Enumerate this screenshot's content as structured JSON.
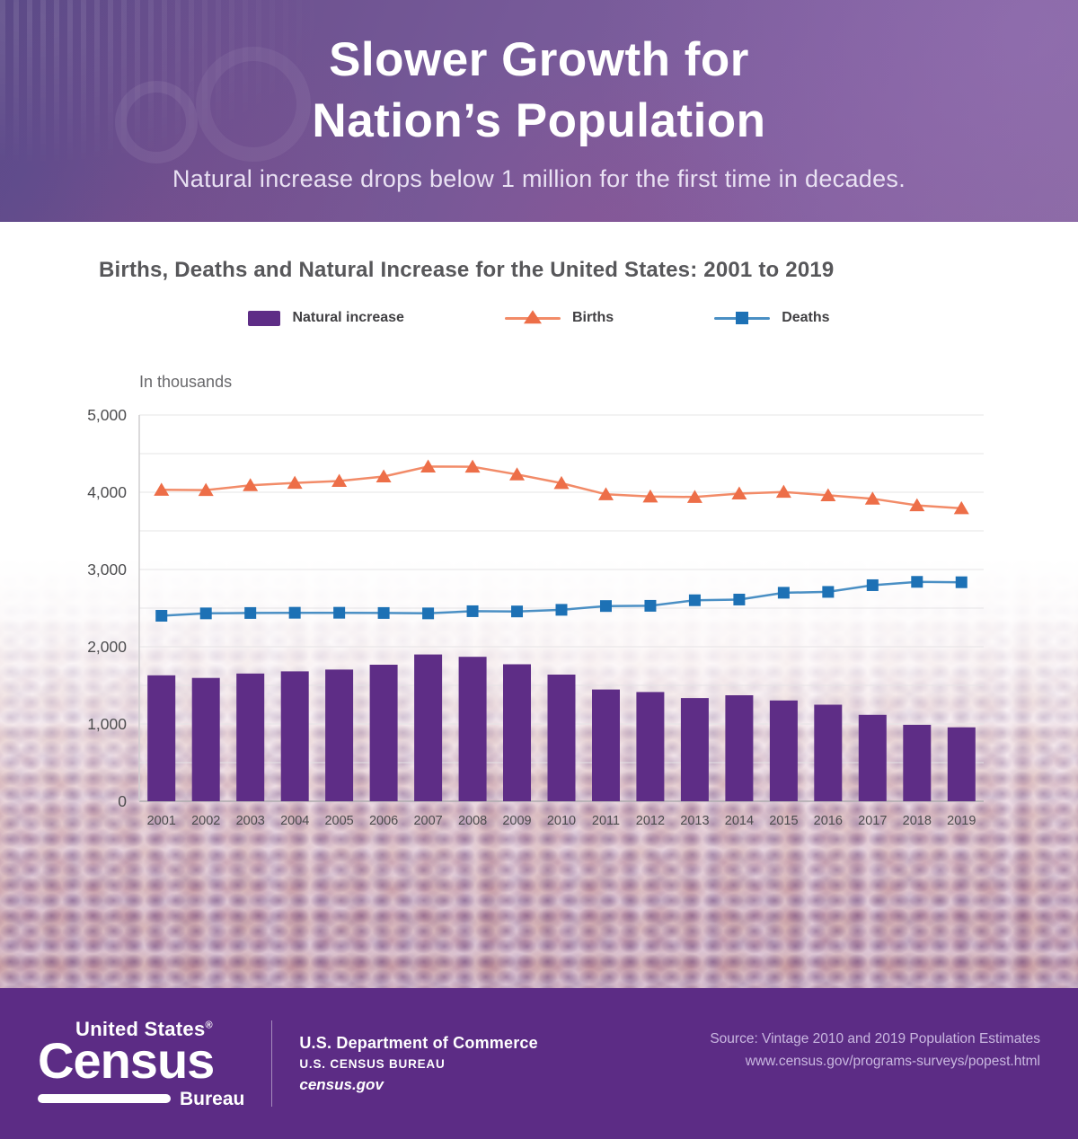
{
  "header": {
    "title_line1": "Slower Growth for",
    "title_line2": "Nation’s Population",
    "subtitle": "Natural increase drops below 1 million for the first time in decades."
  },
  "chart": {
    "title": "Births, Deaths and Natural Increase for the United States: 2001 to 2019",
    "unit_label": "In thousands"
  },
  "chart_data": {
    "type": "bar+line combo",
    "title": "Births, Deaths and Natural Increase for the United States: 2001 to 2019",
    "unit": "In thousands",
    "categories": [
      "2001",
      "2002",
      "2003",
      "2004",
      "2005",
      "2006",
      "2007",
      "2008",
      "2009",
      "2010",
      "2011",
      "2012",
      "2013",
      "2014",
      "2015",
      "2016",
      "2017",
      "2018",
      "2019"
    ],
    "series": [
      {
        "name": "Natural increase",
        "type": "bar",
        "color": "#5e2d86",
        "values": [
          1630,
          1596,
          1653,
          1681,
          1705,
          1767,
          1900,
          1870,
          1773,
          1640,
          1446,
          1414,
          1336,
          1372,
          1305,
          1250,
          1119,
          990,
          957
        ]
      },
      {
        "name": "Births",
        "type": "line",
        "marker": "triangle",
        "line_color": "#f28b68",
        "marker_color": "#ed6e48",
        "values": [
          4031,
          4028,
          4090,
          4121,
          4145,
          4204,
          4332,
          4330,
          4230,
          4118,
          3973,
          3944,
          3938,
          3983,
          4004,
          3960,
          3916,
          3830,
          3792
        ]
      },
      {
        "name": "Deaths",
        "type": "line",
        "marker": "square",
        "line_color": "#4a8fc4",
        "marker_color": "#1d71b5",
        "values": [
          2401,
          2432,
          2437,
          2440,
          2440,
          2437,
          2432,
          2460,
          2457,
          2478,
          2527,
          2530,
          2602,
          2611,
          2699,
          2710,
          2797,
          2840,
          2835
        ]
      }
    ],
    "ylim": [
      0,
      5000
    ],
    "ytick_step": 1000,
    "yticks": [
      "0",
      "1,000",
      "2,000",
      "3,000",
      "4,000",
      "5,000"
    ],
    "grid_step": 500,
    "grid": true,
    "legend_position": "top"
  },
  "footer": {
    "logo_top": "United States",
    "logo_reg": "®",
    "logo_main": "Census",
    "logo_bureau": "Bureau",
    "dept_line1": "U.S. Department of Commerce",
    "dept_line2": "U.S. CENSUS BUREAU",
    "dept_line3": "census.gov",
    "source_line1": "Source: Vintage 2010 and 2019 Population Estimates",
    "source_line2": "www.census.gov/programs-surveys/popest.html"
  },
  "colors": {
    "header_purple": "#6d5290",
    "footer_purple": "#5c2c85",
    "bar_purple": "#5e2d86",
    "births_orange": "#ed6e48",
    "deaths_blue": "#1d71b5",
    "chart_title_gray": "#57575a"
  }
}
